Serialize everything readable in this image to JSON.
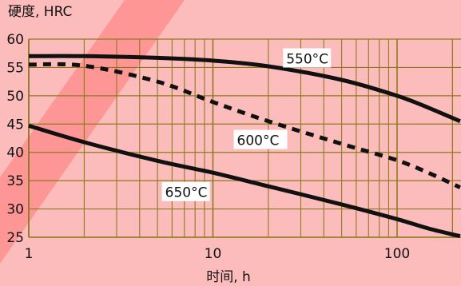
{
  "chart_data": {
    "type": "line",
    "ylabel": "硬度, HRC",
    "xlabel": "时间, h",
    "xscale": "log",
    "xlim": [
      1,
      220
    ],
    "ylim": [
      25,
      60
    ],
    "x_ticks": [
      1,
      10,
      100
    ],
    "x_tick_labels": [
      "1",
      "10",
      "100"
    ],
    "y_ticks": [
      25,
      30,
      35,
      40,
      45,
      50,
      55,
      60
    ],
    "y_tick_labels": [
      "25",
      "30",
      "35",
      "40",
      "45",
      "50",
      "55",
      "60"
    ],
    "grid": true,
    "legend": "none",
    "series": [
      {
        "name": "550°C",
        "style": "solid",
        "color": "#111111",
        "x": [
          1,
          2,
          5,
          10,
          20,
          50,
          100,
          150,
          220
        ],
        "y": [
          57,
          57,
          56.7,
          56.2,
          55.2,
          52.8,
          50.0,
          47.8,
          45.5
        ]
      },
      {
        "name": "600°C",
        "style": "dashed",
        "color": "#111111",
        "x": [
          1,
          2,
          5,
          10,
          20,
          50,
          100,
          150,
          220
        ],
        "y": [
          55.5,
          55.3,
          52.5,
          48.9,
          45.5,
          41.5,
          38.6,
          36.3,
          33.8
        ]
      },
      {
        "name": "650°C",
        "style": "solid",
        "color": "#111111",
        "x": [
          1,
          2,
          5,
          10,
          20,
          50,
          100,
          150,
          220
        ],
        "y": [
          44.7,
          41.8,
          38.5,
          36.4,
          34.0,
          30.8,
          28.2,
          26.5,
          25.2
        ]
      }
    ],
    "annotations": [
      {
        "text": "550°C",
        "series": "550°C"
      },
      {
        "text": "600°C",
        "series": "600°C"
      },
      {
        "text": "650°C",
        "series": "650°C"
      }
    ],
    "colors": {
      "background": "#fdbcbc",
      "stripe": "#ff8a8a",
      "grid": "#8d7a1f",
      "axis_text": "#111111"
    }
  }
}
